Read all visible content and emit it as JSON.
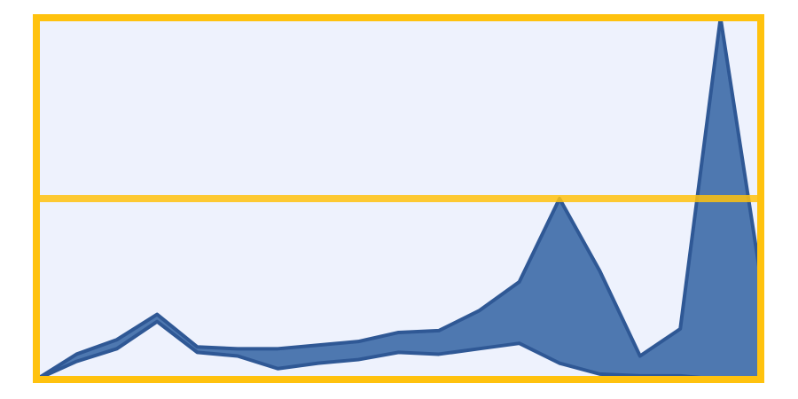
{
  "colors": {
    "background": "#ffffff",
    "plot_fill": "#eef2fd",
    "frame": "#ffc20e",
    "band_fill": "#4e78b0",
    "band_stroke": "#2f5895"
  },
  "chart_data": {
    "type": "area",
    "title": "",
    "xlabel": "",
    "ylabel": "",
    "x": [
      0,
      1,
      2,
      3,
      4,
      5,
      6,
      7,
      8,
      9,
      10,
      11,
      12,
      13,
      14,
      15,
      16,
      17,
      18
    ],
    "series": [
      {
        "values_upper": [
          0,
          0.7,
          1.1,
          1.8,
          0.9,
          0.85,
          0.85,
          0.95,
          1.05,
          1.3,
          1.35,
          1.9,
          2.7,
          5.0,
          3.0,
          0.65,
          1.4,
          10.0,
          2.8
        ],
        "values_lower": [
          0,
          0.5,
          0.85,
          1.6,
          0.75,
          0.65,
          0.3,
          0.45,
          0.55,
          0.75,
          0.7,
          0.85,
          1.0,
          0.45,
          0.15,
          0.1,
          0.1,
          0.0,
          0.0
        ]
      }
    ],
    "ylim": [
      0,
      10
    ],
    "grid": true,
    "gridlines_y": [
      5
    ]
  }
}
